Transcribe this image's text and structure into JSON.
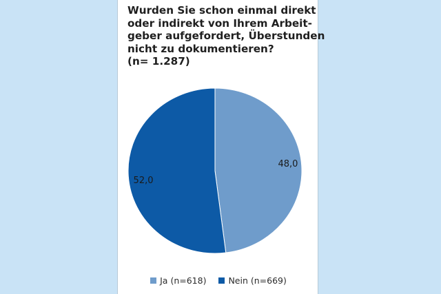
{
  "chart_data": {
    "type": "pie",
    "title_lines": [
      "Wurden Sie schon einmal direkt",
      "oder indirekt von Ihrem Arbeit-",
      "geber aufgefordert, Überstunden",
      "nicht zu dokumentieren?",
      "(n= 1.287)"
    ],
    "slices": [
      {
        "name": "Ja (n=618)",
        "value": 48.0,
        "label": "48,0",
        "color": "#6f9ccb"
      },
      {
        "name": "Nein (n=669)",
        "value": 52.0,
        "label": "52,0",
        "color": "#0d5aa6"
      }
    ],
    "start": "12 o'clock",
    "direction": "clockwise",
    "legend_position": "bottom"
  }
}
